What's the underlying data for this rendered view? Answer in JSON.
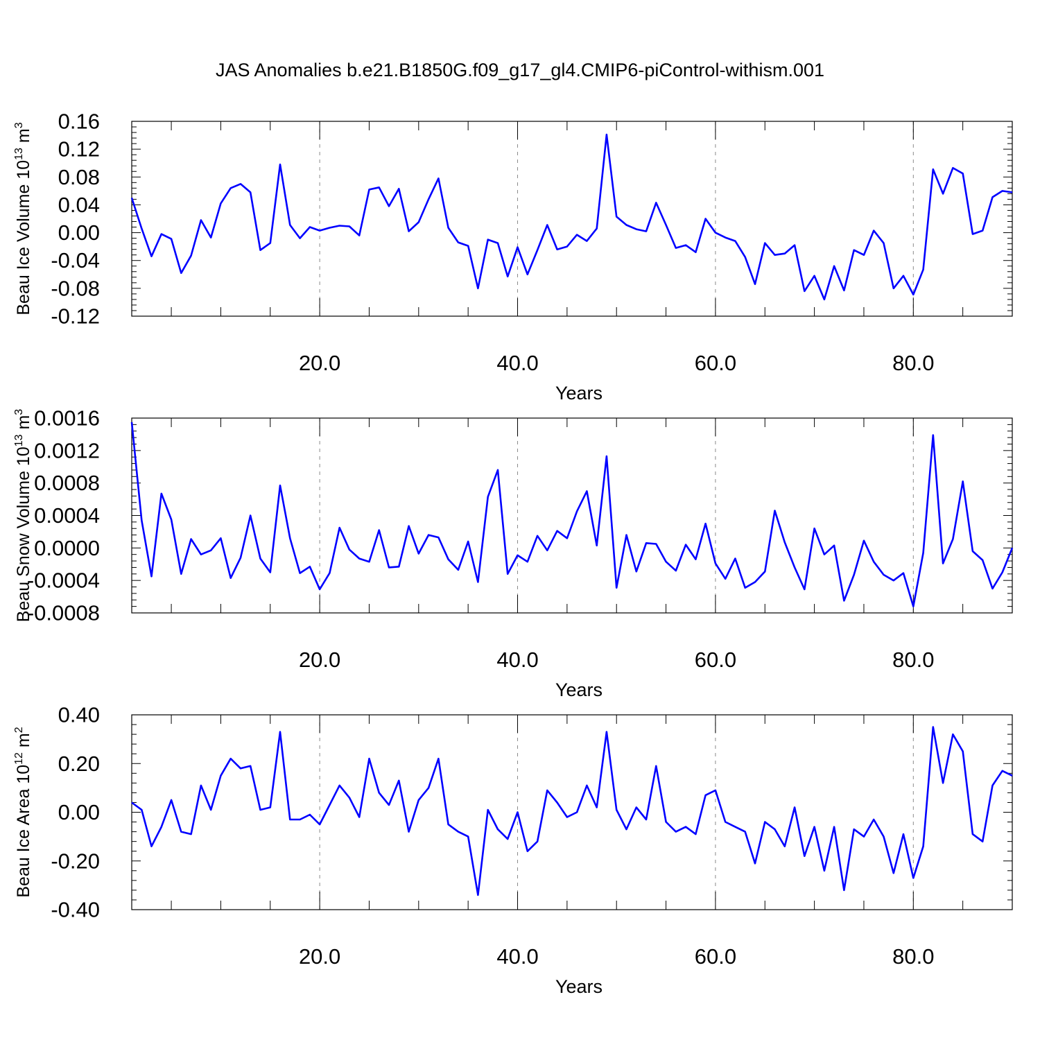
{
  "title": "JAS Anomalies b.e21.B1850G.f09_g17_gl4.CMIP6-piControl-withism.001",
  "colors": {
    "series": "#0000ff",
    "axis": "#000000",
    "grid": "#8a8a8a"
  },
  "chart_data": [
    {
      "type": "line",
      "xlabel": "Years",
      "ylabel": "Beau Ice Volume 10",
      "ylabel_exp": "13",
      "ylabel_unit": "m",
      "ylabel_unit_exp": "3",
      "xlim": [
        1,
        90
      ],
      "ylim": [
        -0.12,
        0.16
      ],
      "xticks": [
        20.0,
        40.0,
        60.0,
        80.0
      ],
      "xtick_labels": [
        "20.0",
        "40.0",
        "60.0",
        "80.0"
      ],
      "yticks": [
        -0.12,
        -0.08,
        -0.04,
        0.0,
        0.04,
        0.08,
        0.12,
        0.16
      ],
      "ytick_labels": [
        "-0.12",
        "-0.08",
        "-0.04",
        "0.00",
        "0.04",
        "0.08",
        "0.12",
        "0.16"
      ],
      "grid": "vertical dashed",
      "x": [
        1,
        2,
        3,
        4,
        5,
        6,
        7,
        8,
        9,
        10,
        11,
        12,
        13,
        14,
        15,
        16,
        17,
        18,
        19,
        20,
        21,
        22,
        23,
        24,
        25,
        26,
        27,
        28,
        29,
        30,
        31,
        32,
        33,
        34,
        35,
        36,
        37,
        38,
        39,
        40,
        41,
        42,
        43,
        44,
        45,
        46,
        47,
        48,
        49,
        50,
        51,
        52,
        53,
        54,
        55,
        56,
        57,
        58,
        59,
        60,
        61,
        62,
        63,
        64,
        65,
        66,
        67,
        68,
        69,
        70,
        71,
        72,
        73,
        74,
        75,
        76,
        77,
        78,
        79,
        80,
        81,
        82,
        83,
        84,
        85,
        86,
        87,
        88,
        89,
        90
      ],
      "values": [
        0.05,
        0.006,
        -0.034,
        -0.002,
        -0.009,
        -0.058,
        -0.033,
        0.018,
        -0.007,
        0.042,
        0.064,
        0.07,
        0.058,
        -0.025,
        -0.015,
        0.098,
        0.011,
        -0.008,
        0.008,
        0.003,
        0.007,
        0.01,
        0.009,
        -0.004,
        0.062,
        0.065,
        0.038,
        0.063,
        0.002,
        0.015,
        0.048,
        0.078,
        0.007,
        -0.014,
        -0.019,
        -0.08,
        -0.01,
        -0.015,
        -0.063,
        -0.021,
        -0.06,
        -0.025,
        0.011,
        -0.024,
        -0.02,
        -0.003,
        -0.012,
        0.006,
        0.141,
        0.023,
        0.011,
        0.005,
        0.002,
        0.043,
        0.011,
        -0.022,
        -0.018,
        -0.028,
        0.02,
        0.0,
        -0.007,
        -0.012,
        -0.035,
        -0.074,
        -0.015,
        -0.032,
        -0.03,
        -0.018,
        -0.084,
        -0.062,
        -0.096,
        -0.048,
        -0.083,
        -0.025,
        -0.032,
        0.003,
        -0.015,
        -0.08,
        -0.062,
        -0.089,
        -0.053,
        0.091,
        0.056,
        0.093,
        0.085,
        -0.002,
        0.003,
        0.051,
        0.06,
        0.058
      ]
    },
    {
      "type": "line",
      "xlabel": "Years",
      "ylabel": "Beau Snow Volume 10",
      "ylabel_exp": "13",
      "ylabel_unit": "m",
      "ylabel_unit_exp": "3",
      "xlim": [
        1,
        90
      ],
      "ylim": [
        -0.0008,
        0.0016
      ],
      "xticks": [
        20.0,
        40.0,
        60.0,
        80.0
      ],
      "xtick_labels": [
        "20.0",
        "40.0",
        "60.0",
        "80.0"
      ],
      "yticks": [
        -0.0008,
        -0.0004,
        0.0,
        0.0004,
        0.0008,
        0.0012,
        0.0016
      ],
      "ytick_labels": [
        "-0.0008",
        "-0.0004",
        "0.0000",
        "0.0004",
        "0.0008",
        "0.0012",
        "0.0016"
      ],
      "grid": "vertical dashed",
      "x": [
        1,
        2,
        3,
        4,
        5,
        6,
        7,
        8,
        9,
        10,
        11,
        12,
        13,
        14,
        15,
        16,
        17,
        18,
        19,
        20,
        21,
        22,
        23,
        24,
        25,
        26,
        27,
        28,
        29,
        30,
        31,
        32,
        33,
        34,
        35,
        36,
        37,
        38,
        39,
        40,
        41,
        42,
        43,
        44,
        45,
        46,
        47,
        48,
        49,
        50,
        51,
        52,
        53,
        54,
        55,
        56,
        57,
        58,
        59,
        60,
        61,
        62,
        63,
        64,
        65,
        66,
        67,
        68,
        69,
        70,
        71,
        72,
        73,
        74,
        75,
        76,
        77,
        78,
        79,
        80,
        81,
        82,
        83,
        84,
        85,
        86,
        87,
        88,
        89,
        90
      ],
      "values": [
        0.00155,
        0.00034,
        -0.00035,
        0.00067,
        0.00035,
        -0.00032,
        0.00011,
        -8e-05,
        -3e-05,
        0.00012,
        -0.00037,
        -0.00012,
        0.0004,
        -0.00013,
        -0.0003,
        0.00077,
        0.00012,
        -0.00031,
        -0.00023,
        -0.00051,
        -0.00031,
        0.00025,
        -2e-05,
        -0.00013,
        -0.00017,
        0.00022,
        -0.00024,
        -0.00023,
        0.00027,
        -7e-05,
        0.00016,
        0.00013,
        -0.00014,
        -0.00027,
        8e-05,
        -0.00042,
        0.00063,
        0.00096,
        -0.00032,
        -9e-05,
        -0.00017,
        0.00015,
        -3e-05,
        0.00021,
        0.00012,
        0.00045,
        0.0007,
        3e-05,
        0.00113,
        -0.00049,
        0.00016,
        -0.00029,
        6e-05,
        5e-05,
        -0.00017,
        -0.00028,
        4e-05,
        -0.00014,
        0.0003,
        -0.00019,
        -0.00038,
        -0.00013,
        -0.00049,
        -0.00042,
        -0.00029,
        0.00046,
        7e-05,
        -0.00024,
        -0.00051,
        0.00024,
        -8e-05,
        3e-05,
        -0.00065,
        -0.00033,
        9e-05,
        -0.00017,
        -0.00033,
        -0.0004,
        -0.00031,
        -0.00072,
        -6e-05,
        0.00139,
        -0.00019,
        0.00011,
        0.00082,
        -4e-05,
        -0.00015,
        -0.0005,
        -0.0003,
        0.0
      ]
    },
    {
      "type": "line",
      "xlabel": "Years",
      "ylabel": "Beau Ice Area 10",
      "ylabel_exp": "12",
      "ylabel_unit": "m",
      "ylabel_unit_exp": "2",
      "xlim": [
        1,
        90
      ],
      "ylim": [
        -0.4,
        0.4
      ],
      "xticks": [
        20.0,
        40.0,
        60.0,
        80.0
      ],
      "xtick_labels": [
        "20.0",
        "40.0",
        "60.0",
        "80.0"
      ],
      "yticks": [
        -0.4,
        -0.2,
        0.0,
        0.2,
        0.4
      ],
      "ytick_labels": [
        "-0.40",
        "-0.20",
        "0.00",
        "0.20",
        "0.40"
      ],
      "grid": "vertical dashed",
      "x": [
        1,
        2,
        3,
        4,
        5,
        6,
        7,
        8,
        9,
        10,
        11,
        12,
        13,
        14,
        15,
        16,
        17,
        18,
        19,
        20,
        21,
        22,
        23,
        24,
        25,
        26,
        27,
        28,
        29,
        30,
        31,
        32,
        33,
        34,
        35,
        36,
        37,
        38,
        39,
        40,
        41,
        42,
        43,
        44,
        45,
        46,
        47,
        48,
        49,
        50,
        51,
        52,
        53,
        54,
        55,
        56,
        57,
        58,
        59,
        60,
        61,
        62,
        63,
        64,
        65,
        66,
        67,
        68,
        69,
        70,
        71,
        72,
        73,
        74,
        75,
        76,
        77,
        78,
        79,
        80,
        81,
        82,
        83,
        84,
        85,
        86,
        87,
        88,
        89,
        90
      ],
      "values": [
        0.04,
        0.01,
        -0.14,
        -0.06,
        0.05,
        -0.08,
        -0.09,
        0.11,
        0.01,
        0.15,
        0.22,
        0.18,
        0.19,
        0.01,
        0.02,
        0.33,
        -0.03,
        -0.03,
        -0.01,
        -0.05,
        0.03,
        0.11,
        0.06,
        -0.02,
        0.22,
        0.08,
        0.03,
        0.13,
        -0.08,
        0.05,
        0.1,
        0.22,
        -0.05,
        -0.08,
        -0.1,
        -0.34,
        0.01,
        -0.07,
        -0.11,
        0.0,
        -0.16,
        -0.12,
        0.09,
        0.04,
        -0.02,
        0.0,
        0.11,
        0.02,
        0.33,
        0.01,
        -0.07,
        0.02,
        -0.03,
        0.19,
        -0.04,
        -0.08,
        -0.06,
        -0.09,
        0.07,
        0.09,
        -0.04,
        -0.06,
        -0.08,
        -0.21,
        -0.04,
        -0.07,
        -0.14,
        0.02,
        -0.18,
        -0.06,
        -0.24,
        -0.06,
        -0.32,
        -0.07,
        -0.1,
        -0.03,
        -0.1,
        -0.25,
        -0.09,
        -0.27,
        -0.14,
        0.35,
        0.12,
        0.32,
        0.25,
        -0.09,
        -0.12,
        0.11,
        0.17,
        0.15
      ]
    }
  ]
}
